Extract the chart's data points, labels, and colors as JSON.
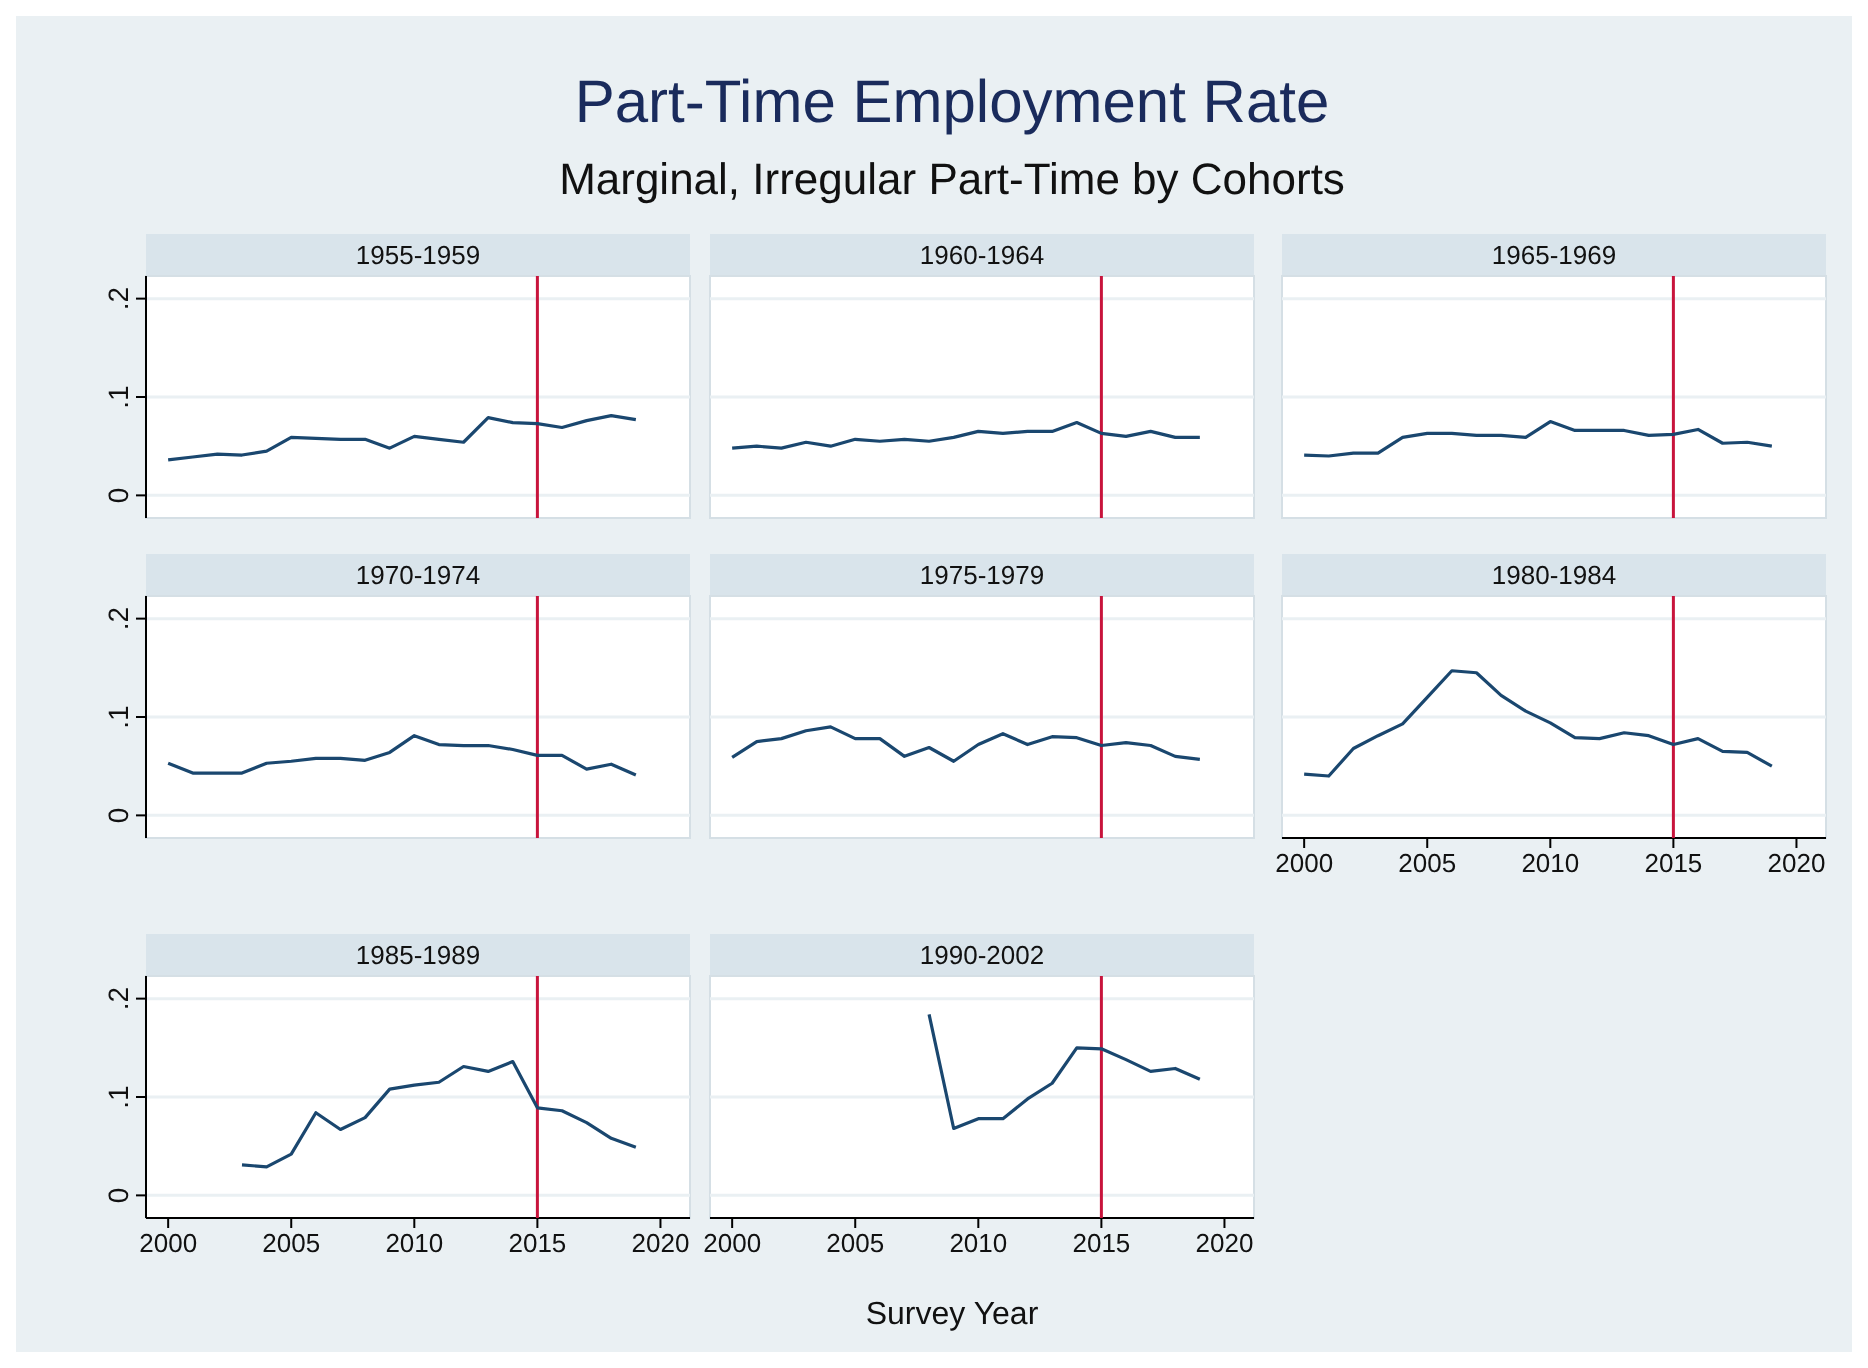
{
  "chart_data": [
    {
      "type": "other",
      "title": "Part-Time Employment Rate",
      "subtitle": "Marginal, Irregular Part-Time by Cohorts",
      "xlabel": "Survey Year"
    },
    {
      "type": "line",
      "title": "1955-1959",
      "x": [
        2000,
        2001,
        2002,
        2003,
        2004,
        2005,
        2006,
        2007,
        2008,
        2009,
        2010,
        2011,
        2012,
        2013,
        2014,
        2015,
        2016,
        2017,
        2018,
        2019
      ],
      "series": [
        {
          "color": "#1a476f",
          "values": [
            0.036,
            0.039,
            0.042,
            0.041,
            0.045,
            0.059,
            0.058,
            0.057,
            0.057,
            0.048,
            0.06,
            0.057,
            0.054,
            0.079,
            0.074,
            0.073,
            0.069,
            0.076,
            0.081,
            0.077
          ]
        }
      ],
      "xlim": [
        1999.1,
        2021.2
      ],
      "ylim": [
        -0.023,
        0.223
      ],
      "yticks": [
        {
          "value": 0,
          "label": "0"
        },
        {
          "value": 0.1,
          "label": ".1"
        },
        {
          "value": 0.2,
          "label": ".2"
        }
      ],
      "grid": "y",
      "tick_labels": "y",
      "ref_lines": [
        {
          "axis": "x",
          "value": 2015,
          "color": "#c8143c"
        }
      ]
    },
    {
      "type": "line",
      "title": "1960-1964",
      "x": [
        2000,
        2001,
        2002,
        2003,
        2004,
        2005,
        2006,
        2007,
        2008,
        2009,
        2010,
        2011,
        2012,
        2013,
        2014,
        2015,
        2016,
        2017,
        2018,
        2019
      ],
      "series": [
        {
          "color": "#1a476f",
          "values": [
            0.048,
            0.05,
            0.048,
            0.054,
            0.05,
            0.057,
            0.055,
            0.057,
            0.055,
            0.059,
            0.065,
            0.063,
            0.065,
            0.065,
            0.074,
            0.063,
            0.06,
            0.065,
            0.059,
            0.059
          ]
        }
      ],
      "xlim": [
        1999.1,
        2021.2
      ],
      "ylim": [
        -0.023,
        0.223
      ],
      "yticks": [
        {
          "value": 0,
          "label": null
        },
        {
          "value": 0.1,
          "label": null
        },
        {
          "value": 0.2,
          "label": null
        }
      ],
      "grid": "y",
      "tick_labels": false,
      "ref_lines": [
        {
          "axis": "x",
          "value": 2015,
          "color": "#c8143c"
        }
      ]
    },
    {
      "type": "line",
      "title": "1965-1969",
      "x": [
        2000,
        2001,
        2002,
        2003,
        2004,
        2005,
        2006,
        2007,
        2008,
        2009,
        2010,
        2011,
        2012,
        2013,
        2014,
        2015,
        2016,
        2017,
        2018,
        2019
      ],
      "series": [
        {
          "color": "#1a476f",
          "values": [
            0.041,
            0.04,
            0.043,
            0.043,
            0.059,
            0.063,
            0.063,
            0.061,
            0.061,
            0.059,
            0.075,
            0.066,
            0.066,
            0.066,
            0.061,
            0.062,
            0.067,
            0.053,
            0.054,
            0.05
          ]
        }
      ],
      "xlim": [
        1999.1,
        2021.2
      ],
      "ylim": [
        -0.023,
        0.223
      ],
      "yticks": [
        {
          "value": 0,
          "label": null
        },
        {
          "value": 0.1,
          "label": null
        },
        {
          "value": 0.2,
          "label": null
        }
      ],
      "grid": "y",
      "tick_labels": false,
      "ref_lines": [
        {
          "axis": "x",
          "value": 2015,
          "color": "#c8143c"
        }
      ]
    },
    {
      "type": "line",
      "title": "1970-1974",
      "x": [
        2000,
        2001,
        2002,
        2003,
        2004,
        2005,
        2006,
        2007,
        2008,
        2009,
        2010,
        2011,
        2012,
        2013,
        2014,
        2015,
        2016,
        2017,
        2018,
        2019
      ],
      "series": [
        {
          "color": "#1a476f",
          "values": [
            0.053,
            0.043,
            0.043,
            0.043,
            0.053,
            0.055,
            0.058,
            0.058,
            0.056,
            0.064,
            0.081,
            0.072,
            0.071,
            0.071,
            0.067,
            0.061,
            0.061,
            0.047,
            0.052,
            0.041
          ]
        }
      ],
      "xlim": [
        1999.1,
        2021.2
      ],
      "ylim": [
        -0.023,
        0.223
      ],
      "yticks": [
        {
          "value": 0,
          "label": "0"
        },
        {
          "value": 0.1,
          "label": ".1"
        },
        {
          "value": 0.2,
          "label": ".2"
        }
      ],
      "grid": "y",
      "tick_labels": "y",
      "ref_lines": [
        {
          "axis": "x",
          "value": 2015,
          "color": "#c8143c"
        }
      ]
    },
    {
      "type": "line",
      "title": "1975-1979",
      "x": [
        2000,
        2001,
        2002,
        2003,
        2004,
        2005,
        2006,
        2007,
        2008,
        2009,
        2010,
        2011,
        2012,
        2013,
        2014,
        2015,
        2016,
        2017,
        2018,
        2019
      ],
      "series": [
        {
          "color": "#1a476f",
          "values": [
            0.059,
            0.075,
            0.078,
            0.086,
            0.09,
            0.078,
            0.078,
            0.06,
            0.069,
            0.055,
            0.072,
            0.083,
            0.072,
            0.08,
            0.079,
            0.071,
            0.074,
            0.071,
            0.06,
            0.057
          ]
        }
      ],
      "xlim": [
        1999.1,
        2021.2
      ],
      "ylim": [
        -0.023,
        0.223
      ],
      "yticks": [
        {
          "value": 0,
          "label": null
        },
        {
          "value": 0.1,
          "label": null
        },
        {
          "value": 0.2,
          "label": null
        }
      ],
      "grid": "y",
      "tick_labels": false,
      "ref_lines": [
        {
          "axis": "x",
          "value": 2015,
          "color": "#c8143c"
        }
      ]
    },
    {
      "type": "line",
      "title": "1980-1984",
      "x": [
        2000,
        2001,
        2002,
        2003,
        2004,
        2005,
        2006,
        2007,
        2008,
        2009,
        2010,
        2011,
        2012,
        2013,
        2014,
        2015,
        2016,
        2017,
        2018,
        2019
      ],
      "series": [
        {
          "color": "#1a476f",
          "values": [
            0.042,
            0.04,
            0.068,
            0.081,
            0.093,
            0.12,
            0.147,
            0.145,
            0.122,
            0.106,
            0.094,
            0.079,
            0.078,
            0.084,
            0.081,
            0.072,
            0.078,
            0.065,
            0.064,
            0.05
          ]
        }
      ],
      "xlim": [
        1999.1,
        2021.2
      ],
      "ylim": [
        -0.023,
        0.223
      ],
      "xticks": [
        2000,
        2005,
        2010,
        2015,
        2020
      ],
      "yticks": [
        {
          "value": 0,
          "label": null
        },
        {
          "value": 0.1,
          "label": null
        },
        {
          "value": 0.2,
          "label": null
        }
      ],
      "grid": "y",
      "tick_labels": "x",
      "ref_lines": [
        {
          "axis": "x",
          "value": 2015,
          "color": "#c8143c"
        }
      ]
    },
    {
      "type": "line",
      "title": "1985-1989",
      "x": [
        2003,
        2004,
        2005,
        2006,
        2007,
        2008,
        2009,
        2010,
        2011,
        2012,
        2013,
        2014,
        2015,
        2016,
        2017,
        2018,
        2019
      ],
      "series": [
        {
          "color": "#1a476f",
          "values": [
            0.031,
            0.029,
            0.042,
            0.084,
            0.067,
            0.079,
            0.108,
            0.112,
            0.115,
            0.131,
            0.126,
            0.136,
            0.089,
            0.086,
            0.074,
            0.058,
            0.049
          ]
        }
      ],
      "xlim": [
        1999.1,
        2021.2
      ],
      "ylim": [
        -0.023,
        0.223
      ],
      "xticks": [
        2000,
        2005,
        2010,
        2015,
        2020
      ],
      "yticks": [
        {
          "value": 0,
          "label": "0"
        },
        {
          "value": 0.1,
          "label": ".1"
        },
        {
          "value": 0.2,
          "label": ".2"
        }
      ],
      "grid": "y",
      "ref_lines": [
        {
          "axis": "x",
          "value": 2015,
          "color": "#c8143c"
        }
      ]
    },
    {
      "type": "line",
      "title": "1990-2002",
      "x": [
        2008,
        2009,
        2010,
        2011,
        2012,
        2013,
        2014,
        2015,
        2016,
        2017,
        2018,
        2019
      ],
      "series": [
        {
          "color": "#1a476f",
          "values": [
            0.184,
            0.068,
            0.078,
            0.078,
            0.098,
            0.114,
            0.15,
            0.149,
            0.138,
            0.126,
            0.129,
            0.118
          ]
        }
      ],
      "xlim": [
        1999.1,
        2021.2
      ],
      "ylim": [
        -0.023,
        0.223
      ],
      "xticks": [
        2000,
        2005,
        2010,
        2015,
        2020
      ],
      "yticks": [
        {
          "value": 0,
          "label": null
        },
        {
          "value": 0.1,
          "label": null
        },
        {
          "value": 0.2,
          "label": null
        }
      ],
      "grid": "y",
      "tick_labels": "x",
      "ref_lines": [
        {
          "axis": "x",
          "value": 2015,
          "color": "#c8143c"
        }
      ]
    }
  ]
}
